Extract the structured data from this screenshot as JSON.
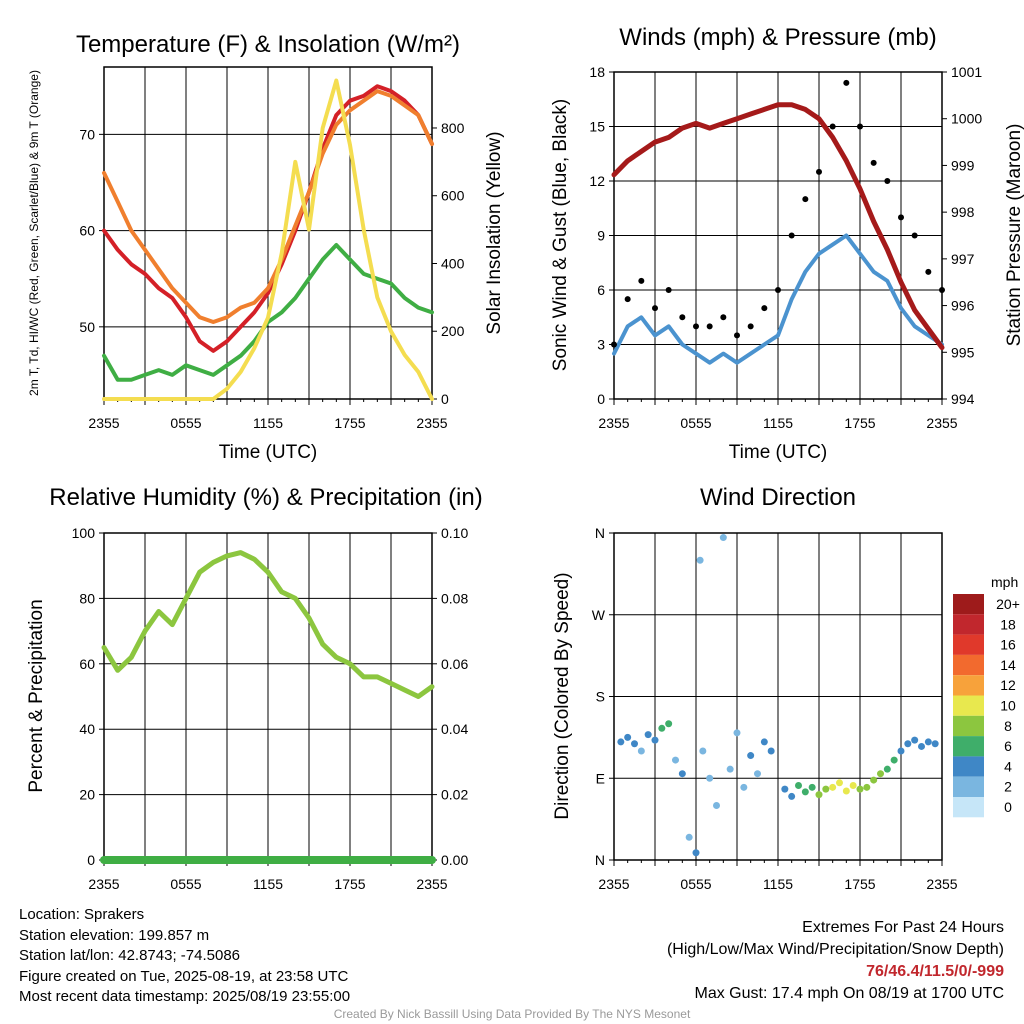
{
  "chart_data": [
    {
      "type": "line",
      "title": "Temperature (F) & Insolation (W/m²)",
      "xlabel": "Time (UTC)",
      "ylabel": "2m T, Td, HI/WC (Red, Green, Scarlet/Blue) & 9m T (Orange)",
      "ylabel_right": "Solar Insolation (Yellow)",
      "x_ticks": [
        "2355",
        "0555",
        "1155",
        "1755",
        "2355"
      ],
      "y_ticks": [
        50,
        60,
        70
      ],
      "y2_ticks": [
        0,
        200,
        400,
        600,
        800
      ],
      "ylim": [
        42.5,
        77
      ],
      "y2lim": [
        0,
        980
      ],
      "series": [
        {
          "color": "#d42027",
          "x": [
            0,
            1,
            2,
            3,
            4,
            5,
            6,
            7,
            8,
            9,
            10,
            11,
            12,
            13,
            14,
            15,
            16,
            17,
            18,
            19,
            20,
            21,
            22,
            23,
            24
          ],
          "values": [
            60,
            58,
            56.5,
            55.5,
            54,
            53,
            51,
            48.5,
            47.5,
            48.5,
            50,
            51.5,
            53.5,
            56.5,
            60,
            64,
            68.5,
            72,
            73.5,
            74,
            75,
            74.5,
            73.5,
            72,
            69
          ]
        },
        {
          "color": "#f07f2e",
          "x": [
            0,
            1,
            2,
            3,
            4,
            5,
            6,
            7,
            8,
            9,
            10,
            11,
            12,
            13,
            14,
            15,
            16,
            17,
            18,
            19,
            20,
            21,
            22,
            23,
            24
          ],
          "values": [
            66,
            63,
            60,
            58,
            56,
            54,
            52.5,
            51,
            50.5,
            51,
            52,
            52.5,
            54,
            57,
            60.5,
            64,
            68,
            71,
            72.5,
            73.5,
            74.5,
            74,
            73,
            72,
            69
          ]
        },
        {
          "color": "#3fae44",
          "x": [
            0,
            1,
            2,
            3,
            4,
            5,
            6,
            7,
            8,
            9,
            10,
            11,
            12,
            13,
            14,
            15,
            16,
            17,
            18,
            19,
            20,
            21,
            22,
            23,
            24
          ],
          "values": [
            47,
            44.5,
            44.5,
            45,
            45.5,
            45,
            46,
            45.5,
            45,
            46,
            47,
            48.5,
            50.5,
            51.5,
            53,
            55,
            57,
            58.5,
            57,
            55.5,
            55,
            54.5,
            53,
            52,
            51.5
          ]
        },
        {
          "color": "#f4dd50",
          "axis": "right",
          "x": [
            0,
            7,
            8,
            9,
            10,
            11,
            12,
            13,
            14,
            15,
            16,
            17,
            18,
            19,
            20,
            21,
            22,
            23,
            24
          ],
          "values": [
            0,
            0,
            0,
            30,
            80,
            150,
            240,
            430,
            700,
            500,
            800,
            940,
            750,
            500,
            300,
            200,
            130,
            80,
            0
          ]
        }
      ]
    },
    {
      "type": "line",
      "title": "Winds (mph) & Pressure (mb)",
      "xlabel": "Time (UTC)",
      "ylabel": "Sonic Wind & Gust (Blue, Black)",
      "ylabel_right": "Station Pressure (Maroon)",
      "x_ticks": [
        "2355",
        "0555",
        "1155",
        "1755",
        "2355"
      ],
      "y_ticks": [
        0,
        3,
        6,
        9,
        12,
        15,
        18
      ],
      "y2_ticks": [
        994,
        995,
        996,
        997,
        998,
        999,
        1000,
        1001
      ],
      "ylim": [
        0,
        18
      ],
      "y2lim": [
        994,
        1001
      ],
      "series": [
        {
          "color": "#4b93cf",
          "x": [
            0,
            1,
            2,
            3,
            4,
            5,
            6,
            7,
            8,
            9,
            10,
            11,
            12,
            13,
            14,
            15,
            16,
            17,
            18,
            19,
            20,
            21,
            22,
            23,
            24
          ],
          "values": [
            2.5,
            4,
            4.5,
            3.5,
            4,
            3,
            2.5,
            2,
            2.5,
            2,
            2.5,
            3,
            3.5,
            5.5,
            7,
            8,
            8.5,
            9,
            8,
            7,
            6.5,
            5,
            4,
            3.5,
            3
          ]
        },
        {
          "color": "#000000",
          "x": [
            0,
            1,
            2,
            3,
            4,
            5,
            6,
            7,
            8,
            9,
            10,
            11,
            12,
            13,
            14,
            15,
            16,
            17,
            18,
            19,
            20,
            21,
            22,
            23,
            24
          ],
          "values": [
            3,
            5.5,
            6.5,
            5,
            6,
            4.5,
            4,
            4,
            4.5,
            3.5,
            4,
            5,
            6,
            9,
            11,
            12.5,
            15,
            17.4,
            15,
            13,
            12,
            10,
            9,
            7,
            6
          ]
        },
        {
          "color": "#a51a1a",
          "axis": "right",
          "x": [
            0,
            1,
            2,
            3,
            4,
            5,
            6,
            7,
            8,
            9,
            10,
            11,
            12,
            13,
            14,
            15,
            16,
            17,
            18,
            19,
            20,
            21,
            22,
            23,
            24
          ],
          "values": [
            998.8,
            999.1,
            999.3,
            999.5,
            999.6,
            999.8,
            999.9,
            999.8,
            999.9,
            1000,
            1000.1,
            1000.2,
            1000.3,
            1000.3,
            1000.2,
            1000,
            999.6,
            999.1,
            998.5,
            997.8,
            997.2,
            996.5,
            995.9,
            995.5,
            995.1
          ]
        }
      ]
    },
    {
      "type": "line",
      "title": "Relative Humidity (%) & Precipitation (in)",
      "ylabel": "Percent & Precipitation",
      "x_ticks": [
        "2355",
        "0555",
        "1155",
        "1755",
        "2355"
      ],
      "y_ticks": [
        0,
        20,
        40,
        60,
        80,
        100
      ],
      "y2_ticks": [
        "0.00",
        "0.02",
        "0.04",
        "0.06",
        "0.08",
        "0.10"
      ],
      "ylim": [
        0,
        100
      ],
      "y2lim": [
        0,
        0.1
      ],
      "series": [
        {
          "color": "#8cc63f",
          "x": [
            0,
            1,
            2,
            3,
            4,
            5,
            6,
            7,
            8,
            9,
            10,
            11,
            12,
            13,
            14,
            15,
            16,
            17,
            18,
            19,
            20,
            21,
            22,
            23,
            24
          ],
          "values": [
            65,
            58,
            62,
            70,
            76,
            72,
            80,
            88,
            91,
            93,
            94,
            92,
            88,
            82,
            80,
            74,
            66,
            62,
            60,
            56,
            56,
            54,
            52,
            50,
            53
          ]
        },
        {
          "color": "#3fae44",
          "axis": "right",
          "x": [
            0,
            24
          ],
          "values": [
            0,
            0
          ]
        }
      ]
    },
    {
      "type": "scatter",
      "title": "Wind Direction",
      "ylabel": "Direction (Colored By Speed)",
      "x_ticks": [
        "2355",
        "0555",
        "1155",
        "1755",
        "2355"
      ],
      "y_ticks": [
        "N",
        "E",
        "S",
        "W",
        "N"
      ],
      "ylim": [
        0,
        360
      ],
      "legend": {
        "unit": "mph",
        "labels": [
          "20+",
          "18",
          "16",
          "14",
          "12",
          "10",
          "8",
          "6",
          "4",
          "2",
          "0"
        ],
        "colors": [
          "#9e1b1b",
          "#c1272d",
          "#e0392b",
          "#f26a2e",
          "#f7a23b",
          "#e8e84e",
          "#8cc63f",
          "#3fae6a",
          "#3f87c6",
          "#7ab6e0",
          "#c6e6f8"
        ]
      },
      "points": [
        {
          "x": 0.5,
          "dir": 130,
          "spd": 3
        },
        {
          "x": 1,
          "dir": 135,
          "spd": 4
        },
        {
          "x": 1.5,
          "dir": 128,
          "spd": 3
        },
        {
          "x": 2,
          "dir": 120,
          "spd": 2
        },
        {
          "x": 2.5,
          "dir": 138,
          "spd": 4
        },
        {
          "x": 3,
          "dir": 132,
          "spd": 4
        },
        {
          "x": 3.5,
          "dir": 145,
          "spd": 5
        },
        {
          "x": 4,
          "dir": 150,
          "spd": 6
        },
        {
          "x": 4.5,
          "dir": 110,
          "spd": 2
        },
        {
          "x": 5,
          "dir": 95,
          "spd": 3
        },
        {
          "x": 5.5,
          "dir": 25,
          "spd": 2
        },
        {
          "x": 6,
          "dir": 8,
          "spd": 3
        },
        {
          "x": 6.3,
          "dir": 330,
          "spd": 1
        },
        {
          "x": 6.5,
          "dir": 120,
          "spd": 2
        },
        {
          "x": 7,
          "dir": 90,
          "spd": 1
        },
        {
          "x": 7.5,
          "dir": 60,
          "spd": 2
        },
        {
          "x": 8,
          "dir": 355,
          "spd": 1
        },
        {
          "x": 8.5,
          "dir": 100,
          "spd": 2
        },
        {
          "x": 9,
          "dir": 140,
          "spd": 1
        },
        {
          "x": 9.5,
          "dir": 80,
          "spd": 2
        },
        {
          "x": 10,
          "dir": 115,
          "spd": 3
        },
        {
          "x": 10.5,
          "dir": 95,
          "spd": 2
        },
        {
          "x": 11,
          "dir": 130,
          "spd": 4
        },
        {
          "x": 11.5,
          "dir": 120,
          "spd": 3
        },
        {
          "x": 12.5,
          "dir": 78,
          "spd": 4
        },
        {
          "x": 13,
          "dir": 70,
          "spd": 4
        },
        {
          "x": 13.5,
          "dir": 82,
          "spd": 6
        },
        {
          "x": 14,
          "dir": 75,
          "spd": 5
        },
        {
          "x": 14.5,
          "dir": 80,
          "spd": 6
        },
        {
          "x": 15,
          "dir": 72,
          "spd": 7
        },
        {
          "x": 15.5,
          "dir": 78,
          "spd": 8
        },
        {
          "x": 16,
          "dir": 80,
          "spd": 9
        },
        {
          "x": 16.5,
          "dir": 85,
          "spd": 10
        },
        {
          "x": 17,
          "dir": 76,
          "spd": 10
        },
        {
          "x": 17.5,
          "dir": 82,
          "spd": 9
        },
        {
          "x": 18,
          "dir": 78,
          "spd": 8
        },
        {
          "x": 18.5,
          "dir": 80,
          "spd": 7
        },
        {
          "x": 19,
          "dir": 88,
          "spd": 8
        },
        {
          "x": 19.5,
          "dir": 95,
          "spd": 7
        },
        {
          "x": 20,
          "dir": 100,
          "spd": 6
        },
        {
          "x": 20.5,
          "dir": 110,
          "spd": 5
        },
        {
          "x": 21,
          "dir": 120,
          "spd": 4
        },
        {
          "x": 21.5,
          "dir": 128,
          "spd": 4
        },
        {
          "x": 22,
          "dir": 132,
          "spd": 3
        },
        {
          "x": 22.5,
          "dir": 125,
          "spd": 4
        },
        {
          "x": 23,
          "dir": 130,
          "spd": 3
        },
        {
          "x": 23.5,
          "dir": 128,
          "spd": 4
        }
      ]
    }
  ],
  "info": {
    "location": "Location: Sprakers",
    "elevation": "Station elevation: 199.857 m",
    "latlon": "Station lat/lon: 42.8743; -74.5086",
    "created": "Figure created on Tue, 2025-08-19, at 23:58 UTC",
    "recent": "Most recent data timestamp: 2025/08/19 23:55:00"
  },
  "extremes": {
    "title": "Extremes For Past 24 Hours",
    "subtitle": "(High/Low/Max Wind/Precipitation/Snow Depth)",
    "values": "76/46.4/11.5/0/-999",
    "gust": "Max Gust: 17.4 mph On 08/19 at 1700 UTC"
  },
  "credit": "Created By Nick Bassill Using Data Provided By The NYS Mesonet"
}
